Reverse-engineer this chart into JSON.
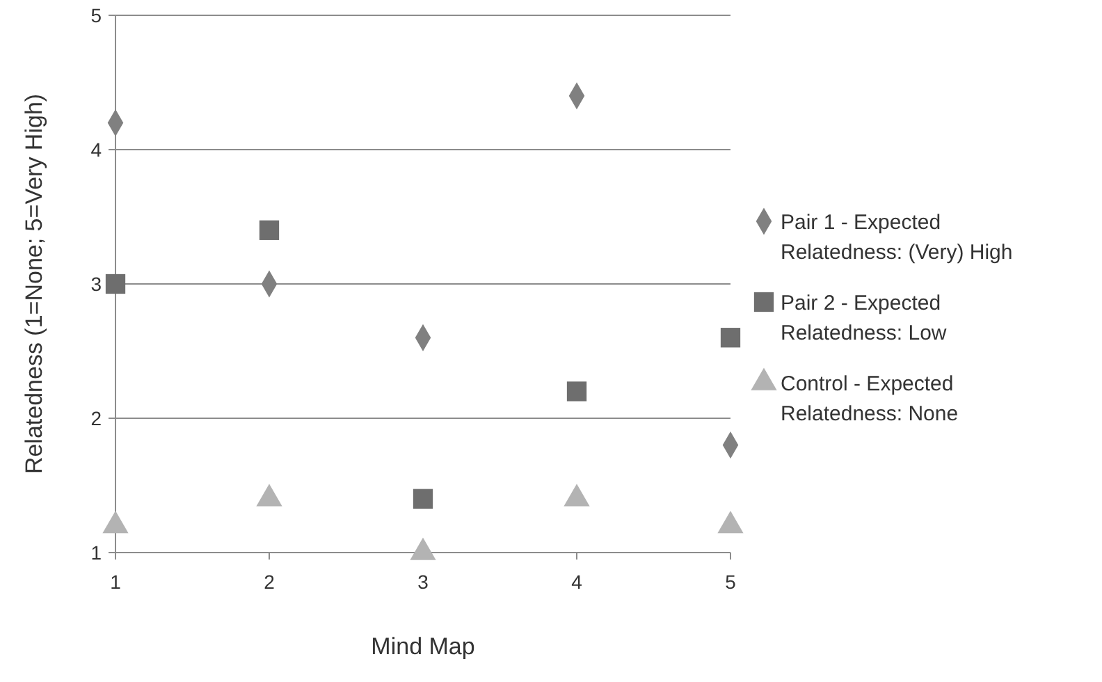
{
  "chart_data": {
    "type": "scatter",
    "xlabel": "Mind Map",
    "ylabel": "Relatedness (1=None; 5=Very High)",
    "x": [
      1,
      2,
      3,
      4,
      5
    ],
    "xlim": [
      1,
      5
    ],
    "xticks": [
      1,
      2,
      3,
      4,
      5
    ],
    "ylim": [
      1,
      5
    ],
    "yticks": [
      1,
      2,
      3,
      4,
      5
    ],
    "grid": "y",
    "legend": "right",
    "series": [
      {
        "name": "Pair 1 - Expected Relatedness: (Very) High",
        "color": "#808080",
        "marker": "diamond",
        "values": [
          4.2,
          3.0,
          2.6,
          4.4,
          1.8
        ]
      },
      {
        "name": "Pair 2 - Expected Relatedness: Low",
        "color": "#6e6e6e",
        "marker": "square",
        "values": [
          3.0,
          3.4,
          1.4,
          2.2,
          2.6
        ]
      },
      {
        "name": "Control - Expected Relatedness: None",
        "color": "#b3b3b3",
        "marker": "triangle",
        "values": [
          1.2,
          1.4,
          1.0,
          1.4,
          1.2
        ]
      }
    ]
  }
}
